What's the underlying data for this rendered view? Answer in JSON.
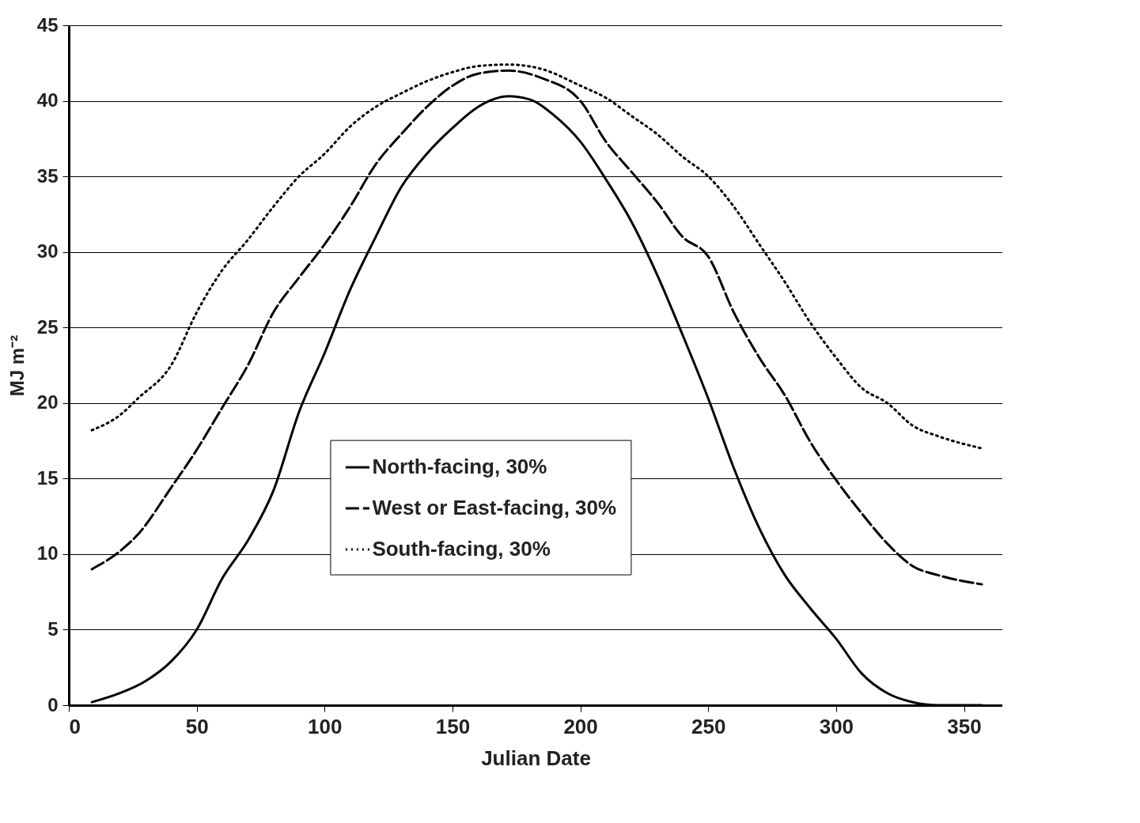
{
  "chart_data": {
    "type": "line",
    "xlabel": "Julian Date",
    "ylabel": "MJ m⁻²",
    "xlim": [
      0,
      365
    ],
    "xticks": [
      0,
      50,
      100,
      150,
      200,
      250,
      300,
      350
    ],
    "ylim": [
      0,
      45
    ],
    "yticks": [
      0,
      5,
      10,
      15,
      20,
      25,
      30,
      35,
      40,
      45
    ],
    "grid": "y",
    "legend": "bottom",
    "marker": "none",
    "series": [
      {
        "name": "North-facing, 30%",
        "color": "#000000",
        "line_style": "solid",
        "x": [
          9,
          20,
          30,
          40,
          50,
          60,
          70,
          80,
          90,
          100,
          110,
          120,
          130,
          140,
          150,
          160,
          172,
          180,
          190,
          200,
          210,
          220,
          230,
          240,
          250,
          260,
          270,
          280,
          290,
          300,
          310,
          320,
          330,
          340,
          357
        ],
        "values": [
          0.2,
          0.8,
          1.6,
          2.9,
          5,
          8.4,
          10.9,
          14.2,
          19.4,
          23.3,
          27.5,
          31,
          34.3,
          36.5,
          38.2,
          39.6,
          40.3,
          40.1,
          39,
          37.3,
          34.8,
          32,
          28.5,
          24.5,
          20.3,
          15.7,
          11.7,
          8.6,
          6.4,
          4.4,
          2.1,
          0.8,
          0.2,
          0,
          0
        ]
      },
      {
        "name": "West or East-facing, 30%",
        "color": "#000000",
        "line_style": "dashed",
        "x": [
          9,
          20,
          27,
          40,
          50,
          60,
          70,
          80,
          90,
          100,
          110,
          120,
          130,
          140,
          150,
          160,
          172,
          185,
          200,
          210,
          220,
          230,
          240,
          250,
          260,
          270,
          280,
          290,
          300,
          310,
          320,
          330,
          340,
          357
        ],
        "values": [
          9,
          10.2,
          11.3,
          14.4,
          16.9,
          19.7,
          22.5,
          26,
          28.3,
          30.5,
          33,
          35.8,
          37.8,
          39.6,
          41,
          41.8,
          42,
          41.5,
          40,
          37.3,
          35.3,
          33.3,
          31,
          29.7,
          26,
          23,
          20.5,
          17.4,
          14.9,
          12.7,
          10.7,
          9.2,
          8.6,
          8
        ]
      },
      {
        "name": "South-facing, 30%",
        "color": "#000000",
        "line_style": "dotted",
        "x": [
          9,
          20,
          27,
          40,
          50,
          60,
          70,
          80,
          90,
          100,
          110,
          120,
          130,
          140,
          150,
          160,
          172,
          185,
          200,
          210,
          220,
          230,
          240,
          250,
          260,
          270,
          280,
          290,
          300,
          310,
          320,
          330,
          340,
          357
        ],
        "values": [
          18.2,
          19.2,
          20.3,
          22.5,
          26,
          28.8,
          30.8,
          33,
          35,
          36.5,
          38.3,
          39.6,
          40.5,
          41.3,
          41.9,
          42.3,
          42.4,
          42.1,
          41,
          40.2,
          39,
          37.8,
          36.3,
          35,
          33,
          30.5,
          28,
          25.3,
          23,
          21,
          20,
          18.5,
          17.8,
          17
        ]
      }
    ]
  }
}
